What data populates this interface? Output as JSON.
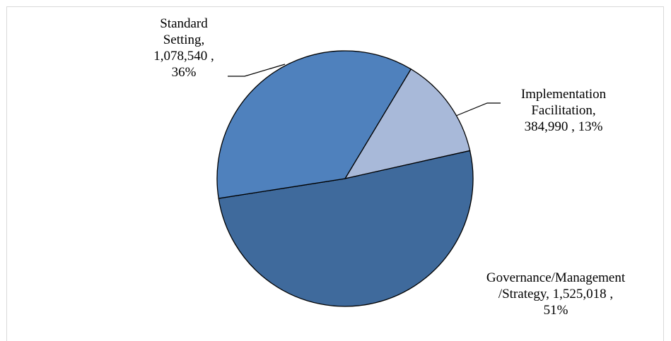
{
  "chart_data": {
    "type": "pie",
    "title": "",
    "slices": [
      {
        "name": "Implementation Facilitation",
        "value": 384990,
        "percent": 13,
        "color": "#a8b9d9",
        "label": "Implementation\nFacilitation,\n384,990 , 13%"
      },
      {
        "name": "Governance/Management/Strategy",
        "value": 1525018,
        "percent": 51,
        "color": "#3f6a9c",
        "label": "Governance/Management\n/Strategy,  1,525,018 ,\n51%"
      },
      {
        "name": "Standard Setting",
        "value": 1078540,
        "percent": 36,
        "color": "#4f81bd",
        "label": "Standard\nSetting,\n1,078,540 ,\n36%"
      }
    ],
    "legend": "none",
    "border_color": "#000000"
  }
}
